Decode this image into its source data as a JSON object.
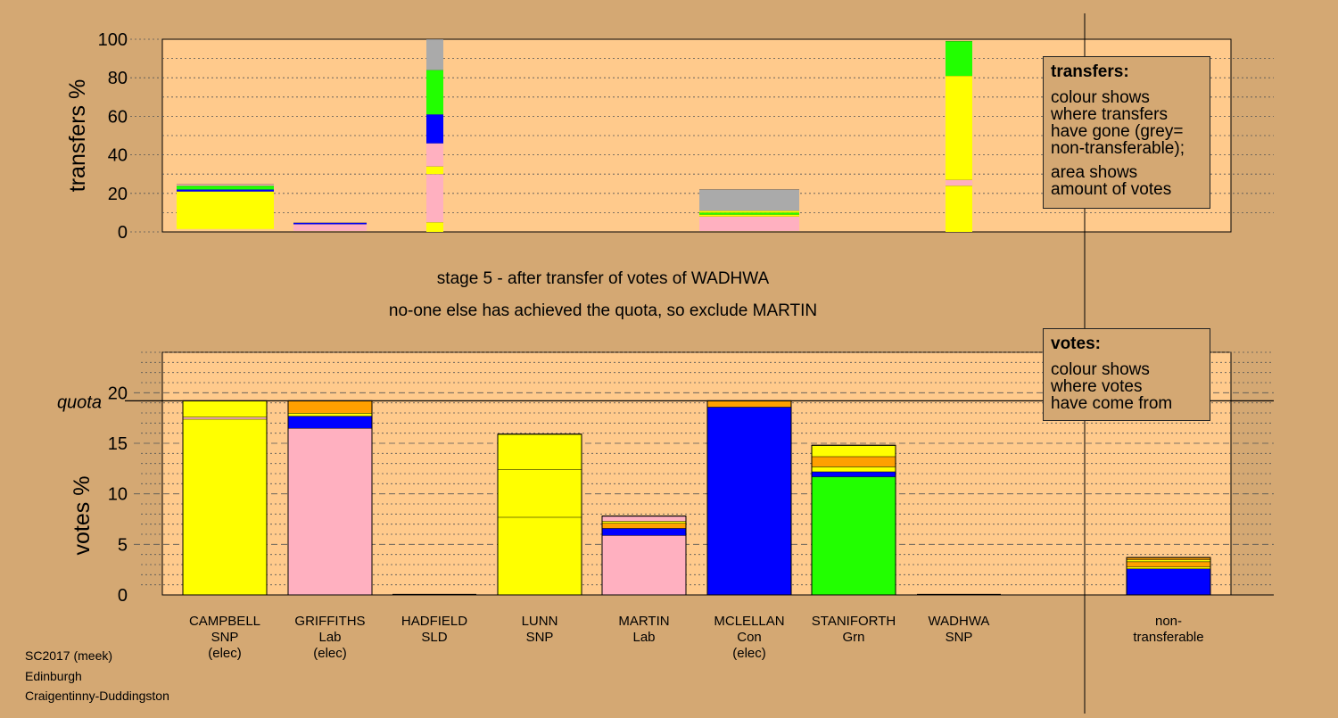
{
  "chart_data": [
    {
      "type": "bar",
      "stacked": true,
      "ylabel": "transfers %",
      "ylim": [
        0,
        100
      ],
      "yticks": [
        "0",
        "20",
        "40",
        "60",
        "80",
        "100"
      ],
      "colors": {
        "SNP": "#ffff00",
        "Lab": "#ffb0c0",
        "SLD": "#ffa000",
        "Con": "#0000ff",
        "Grn": "#22ff00",
        "nontransferable": "#aaaaaa"
      },
      "bars": [
        {
          "candidate": "CAMPBELL",
          "segments": [
            {
              "color": "#ffff00",
              "from": 1.5,
              "to": 21
            },
            {
              "color": "#0000ff",
              "from": 21,
              "to": 22
            },
            {
              "color": "#22ff00",
              "from": 22,
              "to": 24
            },
            {
              "color": "#ffb0c0",
              "from": 24,
              "to": 24.7
            }
          ]
        },
        {
          "candidate": "GRIFFITHS",
          "segments": [
            {
              "color": "#ffb0c0",
              "from": 0.5,
              "to": 4
            },
            {
              "color": "#0000ff",
              "from": 4,
              "to": 4.7
            }
          ]
        },
        {
          "candidate": "HADFIELD",
          "segments": [
            {
              "color": "#ffff00",
              "from": 0,
              "to": 5
            },
            {
              "color": "#ffb0c0",
              "from": 5,
              "to": 30
            },
            {
              "color": "#ffff00",
              "from": 30,
              "to": 34
            },
            {
              "color": "#ffb0c0",
              "from": 34,
              "to": 46
            },
            {
              "color": "#0000ff",
              "from": 46,
              "to": 61
            },
            {
              "color": "#22ff00",
              "from": 61,
              "to": 84
            },
            {
              "color": "#aaaaaa",
              "from": 84,
              "to": 100
            }
          ]
        },
        {
          "candidate": "MCLELLAN",
          "segments": [
            {
              "color": "#ffb0c0",
              "from": 0.5,
              "to": 8
            },
            {
              "color": "#ffff00",
              "from": 8,
              "to": 9
            },
            {
              "color": "#22ff00",
              "from": 9,
              "to": 10
            },
            {
              "color": "#ffff00",
              "from": 10,
              "to": 11
            },
            {
              "color": "#aaaaaa",
              "from": 11,
              "to": 22
            }
          ]
        },
        {
          "candidate": "WADHWA",
          "segments": [
            {
              "color": "#ffff00",
              "from": 0,
              "to": 24
            },
            {
              "color": "#ffb0c0",
              "from": 24,
              "to": 27
            },
            {
              "color": "#ffff00",
              "from": 27,
              "to": 81
            },
            {
              "color": "#22ff00",
              "from": 81,
              "to": 99
            }
          ]
        }
      ]
    },
    {
      "type": "bar",
      "stacked": true,
      "ylabel": "votes %",
      "ylim": [
        0,
        24
      ],
      "yticks": [
        "0",
        "5",
        "10",
        "15",
        "20"
      ],
      "quota": 19.2,
      "quota_label": "quota",
      "categories": [
        {
          "name": "CAMPBELL",
          "party": "SNP",
          "status": "(elec)"
        },
        {
          "name": "GRIFFITHS",
          "party": "Lab",
          "status": "(elec)"
        },
        {
          "name": "HADFIELD",
          "party": "SLD",
          "status": ""
        },
        {
          "name": "LUNN",
          "party": "SNP",
          "status": ""
        },
        {
          "name": "MARTIN",
          "party": "Lab",
          "status": ""
        },
        {
          "name": "MCLELLAN",
          "party": "Con",
          "status": "(elec)"
        },
        {
          "name": "STANIFORTH",
          "party": "Grn",
          "status": ""
        },
        {
          "name": "WADHWA",
          "party": "SNP",
          "status": ""
        },
        {
          "name": "non-",
          "party": "transferable",
          "status": ""
        }
      ],
      "bars": [
        {
          "segments": [
            {
              "color": "#ffff00",
              "from": 0,
              "to": 17.4
            },
            {
              "color": "#ffb0c0",
              "from": 17.4,
              "to": 17.6
            },
            {
              "color": "#ffff00",
              "from": 17.6,
              "to": 19.2
            }
          ]
        },
        {
          "segments": [
            {
              "color": "#ffb0c0",
              "from": 0,
              "to": 16.5
            },
            {
              "color": "#0000ff",
              "from": 16.5,
              "to": 17.7
            },
            {
              "color": "#ffff00",
              "from": 17.7,
              "to": 18.0
            },
            {
              "color": "#ffa000",
              "from": 18.0,
              "to": 19.2
            }
          ]
        },
        {
          "segments": []
        },
        {
          "segments": [
            {
              "color": "#ffff00",
              "from": 0,
              "to": 7.7
            },
            {
              "color": "#ffff00",
              "from": 7.7,
              "to": 12.4
            },
            {
              "color": "#ffff00",
              "from": 12.4,
              "to": 15.9
            }
          ]
        },
        {
          "segments": [
            {
              "color": "#ffb0c0",
              "from": 0,
              "to": 5.9
            },
            {
              "color": "#0000ff",
              "from": 5.9,
              "to": 6.6
            },
            {
              "color": "#ffa000",
              "from": 6.6,
              "to": 7.1
            },
            {
              "color": "#ffff00",
              "from": 7.1,
              "to": 7.3
            },
            {
              "color": "#ffb0c0",
              "from": 7.3,
              "to": 7.8
            }
          ]
        },
        {
          "segments": [
            {
              "color": "#0000ff",
              "from": 0,
              "to": 18.6
            },
            {
              "color": "#ffa000",
              "from": 18.6,
              "to": 19.2
            }
          ]
        },
        {
          "segments": [
            {
              "color": "#22ff00",
              "from": 0,
              "to": 11.7
            },
            {
              "color": "#0000ff",
              "from": 11.7,
              "to": 12.2
            },
            {
              "color": "#ffff00",
              "from": 12.2,
              "to": 12.7
            },
            {
              "color": "#ffa000",
              "from": 12.7,
              "to": 13.7
            },
            {
              "color": "#ffff00",
              "from": 13.7,
              "to": 14.8
            }
          ]
        },
        {
          "segments": []
        },
        {
          "segments": [
            {
              "color": "#0000ff",
              "from": 0,
              "to": 2.6
            },
            {
              "color": "#ffff00",
              "from": 2.6,
              "to": 2.8
            },
            {
              "color": "#ffa000",
              "from": 2.8,
              "to": 3.3
            },
            {
              "color": "#ffff00",
              "from": 3.3,
              "to": 3.5
            },
            {
              "color": "#ffa000",
              "from": 3.5,
              "to": 3.7
            }
          ]
        }
      ]
    }
  ],
  "captions": {
    "line1": "stage 5 - after transfer of votes of WADHWA",
    "line2": "no-one else has achieved the quota, so exclude MARTIN"
  },
  "legends": {
    "transfers": {
      "title": "transfers:",
      "lines1": [
        "colour shows",
        "where transfers",
        "have gone (grey=",
        "non-transferable);"
      ],
      "lines2": [
        "area shows",
        "amount of votes"
      ]
    },
    "votes": {
      "title": "votes:",
      "lines": [
        "colour shows",
        "where votes",
        "have come from"
      ]
    }
  },
  "footer": {
    "line1": "SC2017 (meek)",
    "line2": "Edinburgh",
    "line3": "Craigentinny-Duddingston"
  }
}
